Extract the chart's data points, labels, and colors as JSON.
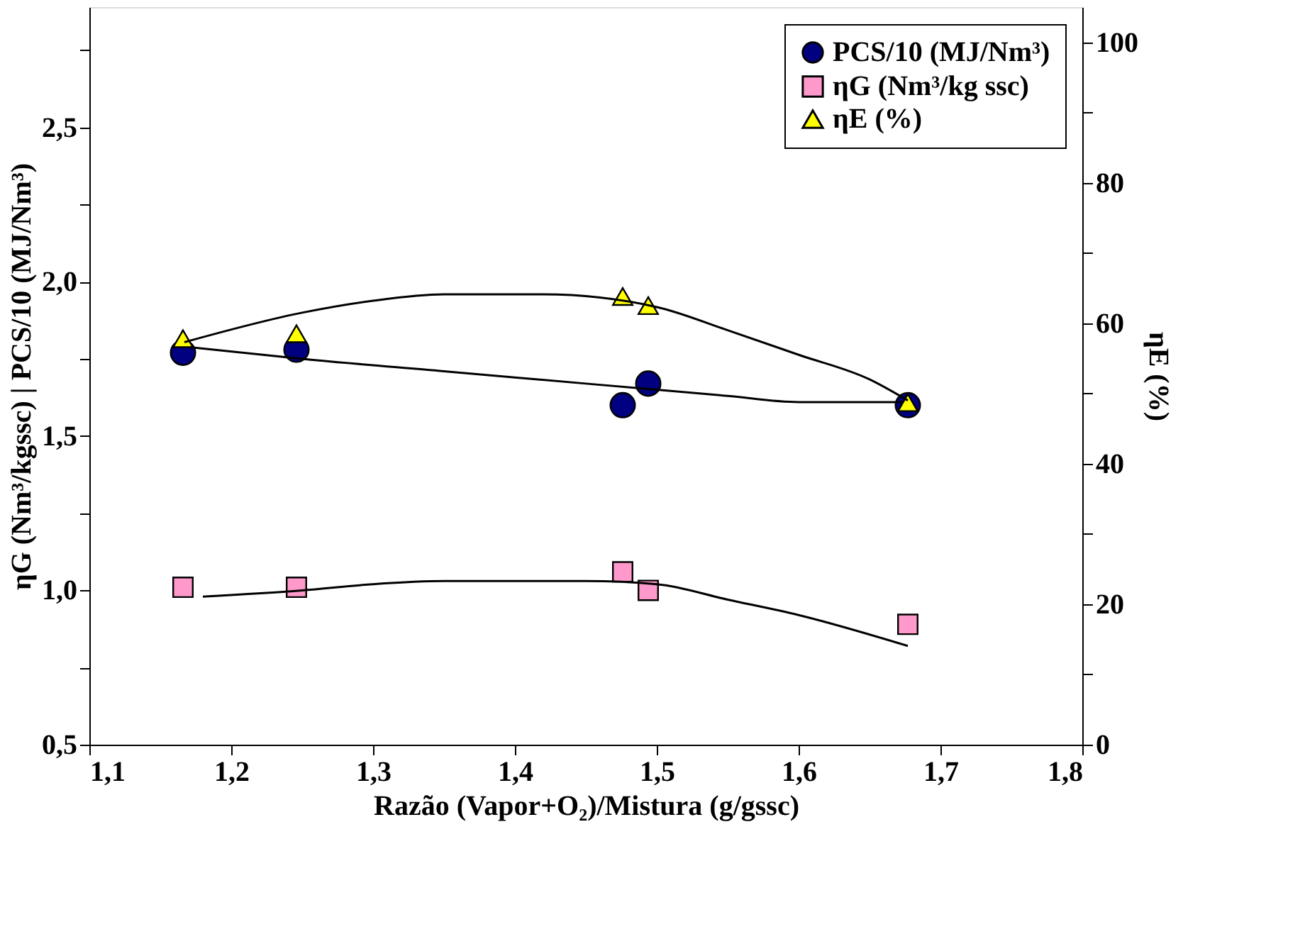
{
  "chart_data": {
    "type": "scatter",
    "xlabel": "Razão (Vapor+O₂)/Mistura  (g/gssc)",
    "ylabel": "ηG (Nm³/kgssc) | PCS/10 (MJ/Nm³)",
    "y2label": "ηE (%)",
    "xlim": [
      1.1,
      1.8
    ],
    "xticks": [
      {
        "value": 1.1,
        "label": "1,1"
      },
      {
        "value": 1.2,
        "label": "1,2"
      },
      {
        "value": 1.3,
        "label": "1,3"
      },
      {
        "value": 1.4,
        "label": "1,4"
      },
      {
        "value": 1.5,
        "label": "1,5"
      },
      {
        "value": 1.6,
        "label": "1,6"
      },
      {
        "value": 1.7,
        "label": "1,7"
      },
      {
        "value": 1.8,
        "label": "1,8"
      }
    ],
    "ylim": [
      0.5,
      2.89
    ],
    "yticks": [
      {
        "value": 0.5,
        "label": "0,5"
      },
      {
        "value": 0.75,
        "label": null
      },
      {
        "value": 1,
        "label": "1,0"
      },
      {
        "value": 1.25,
        "label": null
      },
      {
        "value": 1.5,
        "label": "1,5"
      },
      {
        "value": 1.75,
        "label": null
      },
      {
        "value": 2,
        "label": "2,0"
      },
      {
        "value": 2.25,
        "label": null
      },
      {
        "value": 2.5,
        "label": "2,5"
      },
      {
        "value": 2.75,
        "label": null
      }
    ],
    "y2lim": [
      0,
      105
    ],
    "y2ticks": [
      0,
      {
        "value": 10,
        "label": null
      },
      20,
      {
        "value": 30,
        "label": null
      },
      40,
      {
        "value": 50,
        "label": null
      },
      60,
      {
        "value": 70,
        "label": null
      },
      80,
      {
        "value": 90,
        "label": null
      },
      100
    ],
    "legend": "top right",
    "grid": false,
    "series": [
      {
        "name": "PCS/10 (MJ/Nm³)",
        "color": "#000080",
        "marker": "circle",
        "x": [
          1.166,
          1.246,
          1.476,
          1.494,
          1.677
        ],
        "values": [
          1.77,
          1.78,
          1.6,
          1.67,
          1.6
        ]
      },
      {
        "name": "ηG (Nm³/kg ssc)",
        "color": "#ff99cc",
        "marker": "square",
        "x": [
          1.166,
          1.246,
          1.476,
          1.494,
          1.677
        ],
        "values": [
          1.01,
          1.01,
          1.06,
          1.0,
          0.89
        ]
      },
      {
        "name": "ηE (%)",
        "color": "#ffff00",
        "marker": "triangle",
        "axis": "y2",
        "x": [
          1.166,
          1.246,
          1.476,
          1.494,
          1.677
        ],
        "values": [
          57.8,
          58.5,
          63.8,
          62.5,
          48.7
        ]
      },
      {
        "type": "line",
        "color": "#000000",
        "marker": "none",
        "x": [
          1.167,
          1.25,
          1.35,
          1.45,
          1.55,
          1.6,
          1.677
        ],
        "values": [
          1.79,
          1.75,
          1.71,
          1.67,
          1.63,
          1.61,
          1.61
        ]
      },
      {
        "type": "line",
        "color": "#000000",
        "marker": "none",
        "x": [
          1.18,
          1.25,
          1.3,
          1.35,
          1.45,
          1.5,
          1.55,
          1.6,
          1.677
        ],
        "values": [
          0.98,
          1.0,
          1.02,
          1.03,
          1.03,
          1.02,
          0.97,
          0.92,
          0.82
        ]
      },
      {
        "type": "line",
        "color": "#000000",
        "marker": "none",
        "axis": "y2",
        "x": [
          1.167,
          1.25,
          1.3,
          1.35,
          1.42,
          1.5,
          1.55,
          1.6,
          1.65,
          1.677
        ],
        "values": [
          57.3,
          61.5,
          63.2,
          64.1,
          64.1,
          62.3,
          59,
          55.5,
          52,
          49
        ]
      }
    ]
  }
}
